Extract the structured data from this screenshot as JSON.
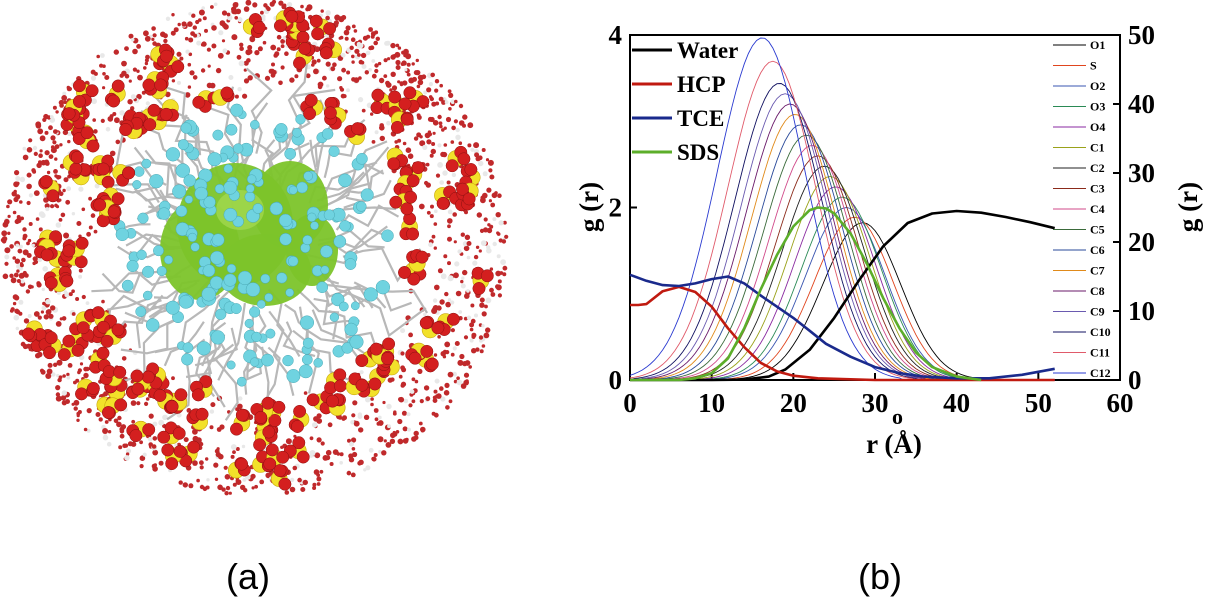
{
  "panel_labels": {
    "a": "(a)",
    "b": "(b)"
  },
  "colors": {
    "water_bead": "#c0292b",
    "sulfur": "#f2e12a",
    "oxygen": "#d41f1f",
    "tail_carbon": "#6fd3e0",
    "chain": "#b8b8b8",
    "core": "#7cc42a"
  },
  "chart_data": {
    "type": "line",
    "xlabel": "r (Å)",
    "ylabel_left": "g (r)",
    "ylabel_right": "g (r)",
    "stray_tick_label": "o",
    "xlim": [
      0,
      60
    ],
    "ylim_left": [
      0,
      4
    ],
    "ylim_right": [
      0,
      50
    ],
    "xticks": [
      0,
      10,
      20,
      30,
      40,
      50,
      60
    ],
    "yticks_left": [
      0,
      2,
      4
    ],
    "yticks_right": [
      0,
      10,
      20,
      30,
      40,
      50
    ],
    "legend_left": [
      {
        "name": "Water",
        "color": "#000000"
      },
      {
        "name": "HCP",
        "color": "#c01a10"
      },
      {
        "name": "TCE",
        "color": "#1a2a8c"
      },
      {
        "name": "SDS",
        "color": "#5cae2a"
      }
    ],
    "series_left": [
      {
        "name": "Water",
        "color": "#000000",
        "x": [
          0,
          10,
          14,
          17,
          19,
          22,
          25,
          28,
          31,
          34,
          37,
          40,
          43,
          46,
          49,
          52
        ],
        "y": [
          0,
          0,
          0.005,
          0.04,
          0.12,
          0.35,
          0.72,
          1.15,
          1.55,
          1.82,
          1.93,
          1.96,
          1.94,
          1.89,
          1.83,
          1.76
        ]
      },
      {
        "name": "HCP",
        "color": "#c01a10",
        "x": [
          0,
          1,
          2,
          4,
          6,
          8,
          10,
          12,
          14,
          16,
          18,
          20,
          23,
          26,
          30,
          40,
          52
        ],
        "y": [
          0.87,
          0.87,
          0.88,
          1.03,
          1.08,
          1.02,
          0.85,
          0.6,
          0.38,
          0.2,
          0.1,
          0.05,
          0.02,
          0.01,
          0,
          0,
          0
        ]
      },
      {
        "name": "TCE",
        "color": "#1a2a8c",
        "x": [
          0,
          2,
          4,
          6,
          8,
          10,
          12,
          14,
          16,
          18,
          20,
          22,
          24,
          27,
          30,
          33,
          36,
          40,
          44,
          48,
          52
        ],
        "y": [
          1.22,
          1.15,
          1.1,
          1.09,
          1.12,
          1.17,
          1.2,
          1.12,
          0.98,
          0.85,
          0.72,
          0.57,
          0.42,
          0.27,
          0.15,
          0.08,
          0.04,
          0.02,
          0.02,
          0.06,
          0.13
        ]
      },
      {
        "name": "SDS",
        "color": "#5cae2a",
        "x": [
          0,
          6,
          8,
          10,
          12,
          14,
          16,
          18,
          20,
          22,
          23,
          24,
          25,
          27,
          29,
          31,
          33,
          35,
          37,
          40,
          43
        ],
        "y": [
          0,
          0,
          0.02,
          0.08,
          0.25,
          0.6,
          1.05,
          1.45,
          1.78,
          1.97,
          2.0,
          1.99,
          1.93,
          1.7,
          1.35,
          0.95,
          0.6,
          0.32,
          0.15,
          0.04,
          0
        ]
      }
    ],
    "series_right": [
      {
        "name": "O1",
        "color": "#000000",
        "peak_r": 28.5,
        "peak_g": 22.8
      },
      {
        "name": "S",
        "color": "#e0451e",
        "peak_r": 27.5,
        "peak_g": 23.6
      },
      {
        "name": "O2",
        "color": "#3a55b0",
        "peak_r": 26.5,
        "peak_g": 25.0
      },
      {
        "name": "O3",
        "color": "#2a8a55",
        "peak_r": 26.0,
        "peak_g": 26.5
      },
      {
        "name": "O4",
        "color": "#8a2aa0",
        "peak_r": 25.2,
        "peak_g": 28.0
      },
      {
        "name": "C1",
        "color": "#9aa21a",
        "peak_r": 24.5,
        "peak_g": 29.5
      },
      {
        "name": "C2",
        "color": "#202020",
        "peak_r": 23.8,
        "peak_g": 31.0
      },
      {
        "name": "C3",
        "color": "#8b2a1a",
        "peak_r": 23.0,
        "peak_g": 32.5
      },
      {
        "name": "C4",
        "color": "#d04a8a",
        "peak_r": 22.3,
        "peak_g": 34.0
      },
      {
        "name": "C5",
        "color": "#3a6a3a",
        "peak_r": 21.6,
        "peak_g": 35.5
      },
      {
        "name": "C6",
        "color": "#2a4a9a",
        "peak_r": 20.9,
        "peak_g": 37.0
      },
      {
        "name": "C7",
        "color": "#e08a1a",
        "peak_r": 20.2,
        "peak_g": 38.5
      },
      {
        "name": "C8",
        "color": "#6a1a6a",
        "peak_r": 19.6,
        "peak_g": 40.0
      },
      {
        "name": "C9",
        "color": "#6a5ab0",
        "peak_r": 19.0,
        "peak_g": 41.5
      },
      {
        "name": "C10",
        "color": "#101060",
        "peak_r": 18.3,
        "peak_g": 43.0
      },
      {
        "name": "C11",
        "color": "#e05a6a",
        "peak_r": 17.5,
        "peak_g": 46.2
      },
      {
        "name": "C12",
        "color": "#2a3ad0",
        "peak_r": 16.2,
        "peak_g": 49.6
      }
    ]
  }
}
